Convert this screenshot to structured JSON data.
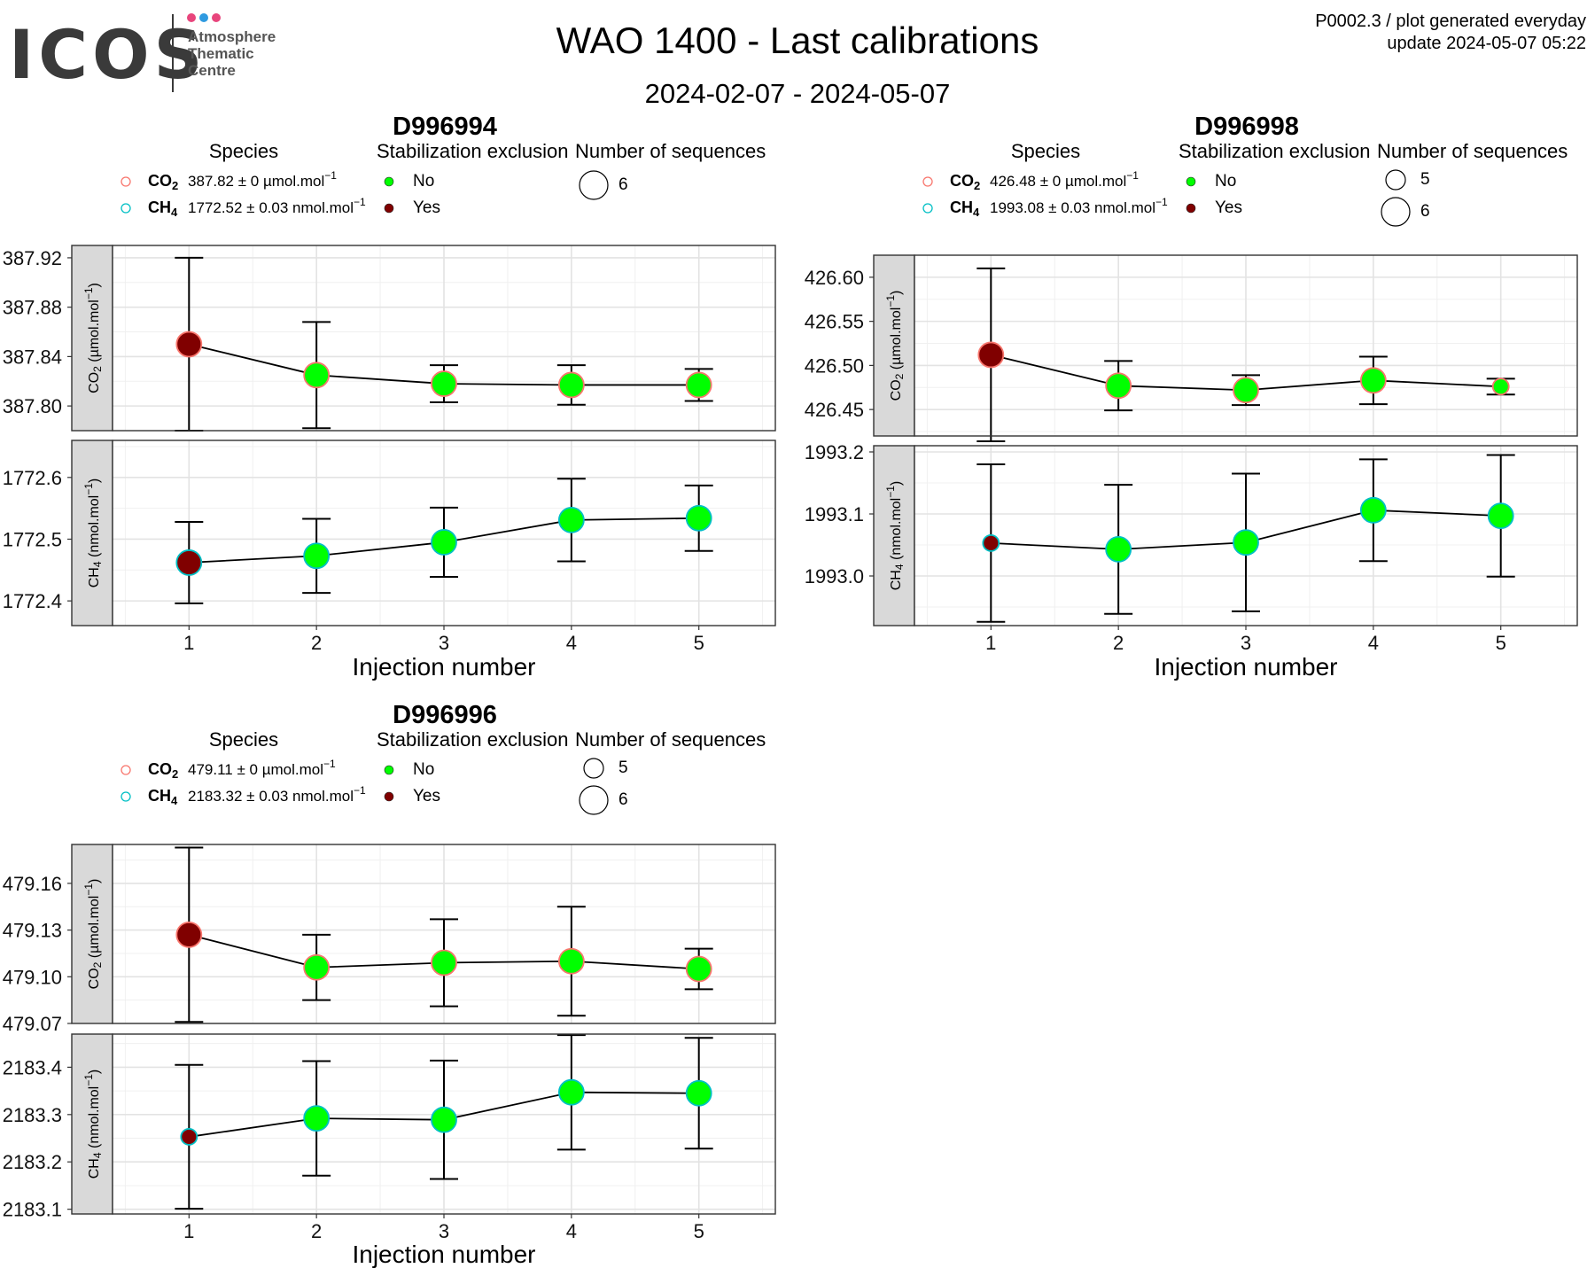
{
  "header": {
    "title": "WAO 1400 - Last calibrations",
    "subtitle": "2024-02-07 - 2024-05-07",
    "info_line1": "P0002.3 / plot generated everyday",
    "info_line2": "update  2024-05-07 05:22",
    "logo_text": "ICOS",
    "logo_lines": [
      "Atmosphere",
      "Thematic",
      "Centre"
    ],
    "logo_dot_colors": [
      "#e8457c",
      "#2f9ae0",
      "#e8457c"
    ]
  },
  "legend_titles": {
    "species": "Species",
    "stabilization": "Stabilization exclusion",
    "sequences": "Number of sequences",
    "no": "No",
    "yes": "Yes"
  },
  "colors": {
    "no": "#00ff00",
    "yes": "#800000",
    "co2": "#f8766d",
    "ch4": "#00bfc4",
    "strip": "#d9d9d9"
  },
  "chart_data": [
    {
      "type": "scatter",
      "cylinder": "D996994",
      "xlabel": "Injection number",
      "x": [
        1,
        2,
        3,
        4,
        5
      ],
      "sequence_sizes": [
        "6"
      ],
      "panels": [
        {
          "species": "CO2",
          "strip_label": "CO2 (µmol.mol-1)",
          "legend_value": "387.82 ± 0 µmol.mol-1",
          "ylim": [
            387.78,
            387.93
          ],
          "yticks": [
            387.8,
            387.84,
            387.88,
            387.92
          ],
          "ytick_labels": [
            "387.80",
            "387.84",
            "387.88",
            "387.92"
          ],
          "points": [
            {
              "x": 1,
              "y": 387.85,
              "err": 0.07,
              "excluded": true,
              "n": 6
            },
            {
              "x": 2,
              "y": 387.825,
              "err": 0.043,
              "excluded": false,
              "n": 6
            },
            {
              "x": 3,
              "y": 387.818,
              "err": 0.015,
              "excluded": false,
              "n": 6
            },
            {
              "x": 4,
              "y": 387.817,
              "err": 0.016,
              "excluded": false,
              "n": 6
            },
            {
              "x": 5,
              "y": 387.817,
              "err": 0.013,
              "excluded": false,
              "n": 6
            }
          ]
        },
        {
          "species": "CH4",
          "strip_label": "CH4 (nmol.mol-1)",
          "legend_value": "1772.52 ± 0.03 nmol.mol-1",
          "ylim": [
            1772.36,
            1772.66
          ],
          "yticks": [
            1772.4,
            1772.5,
            1772.6
          ],
          "ytick_labels": [
            "1772.4",
            "1772.5",
            "1772.6"
          ],
          "points": [
            {
              "x": 1,
              "y": 1772.462,
              "err": 0.066,
              "excluded": true,
              "n": 6
            },
            {
              "x": 2,
              "y": 1772.473,
              "err": 0.06,
              "excluded": false,
              "n": 6
            },
            {
              "x": 3,
              "y": 1772.495,
              "err": 0.056,
              "excluded": false,
              "n": 6
            },
            {
              "x": 4,
              "y": 1772.531,
              "err": 0.067,
              "excluded": false,
              "n": 6
            },
            {
              "x": 5,
              "y": 1772.534,
              "err": 0.053,
              "excluded": false,
              "n": 6
            }
          ]
        }
      ]
    },
    {
      "type": "scatter",
      "cylinder": "D996998",
      "xlabel": "Injection number",
      "x": [
        1,
        2,
        3,
        4,
        5
      ],
      "sequence_sizes": [
        "5",
        "6"
      ],
      "panels": [
        {
          "species": "CO2",
          "strip_label": "CO2 (µmol.mol-1)",
          "legend_value": "426.48 ± 0 µmol.mol-1",
          "ylim": [
            426.42,
            426.625
          ],
          "yticks": [
            426.45,
            426.5,
            426.55,
            426.6
          ],
          "ytick_labels": [
            "426.45",
            "426.50",
            "426.55",
            "426.60"
          ],
          "points": [
            {
              "x": 1,
              "y": 426.512,
              "err": 0.098,
              "excluded": true,
              "n": 6
            },
            {
              "x": 2,
              "y": 426.477,
              "err": 0.028,
              "excluded": false,
              "n": 6
            },
            {
              "x": 3,
              "y": 426.472,
              "err": 0.017,
              "excluded": false,
              "n": 6
            },
            {
              "x": 4,
              "y": 426.483,
              "err": 0.027,
              "excluded": false,
              "n": 6
            },
            {
              "x": 5,
              "y": 426.476,
              "err": 0.009,
              "excluded": false,
              "n": 5
            }
          ]
        },
        {
          "species": "CH4",
          "strip_label": "CH4 (nmol.mol-1)",
          "legend_value": "1993.08 ± 0.03 nmol.mol-1",
          "ylim": [
            1992.92,
            1993.21
          ],
          "yticks": [
            1993.0,
            1993.1,
            1993.2
          ],
          "ytick_labels": [
            "1993.0",
            "1993.1",
            "1993.2"
          ],
          "points": [
            {
              "x": 1,
              "y": 1993.053,
              "err": 0.127,
              "excluded": true,
              "n": 5
            },
            {
              "x": 2,
              "y": 1993.043,
              "err": 0.104,
              "excluded": false,
              "n": 6
            },
            {
              "x": 3,
              "y": 1993.054,
              "err": 0.111,
              "excluded": false,
              "n": 6
            },
            {
              "x": 4,
              "y": 1993.106,
              "err": 0.082,
              "excluded": false,
              "n": 6
            },
            {
              "x": 5,
              "y": 1993.097,
              "err": 0.098,
              "excluded": false,
              "n": 6
            }
          ]
        }
      ]
    },
    {
      "type": "scatter",
      "cylinder": "D996996",
      "xlabel": "Injection number",
      "x": [
        1,
        2,
        3,
        4,
        5
      ],
      "sequence_sizes": [
        "5",
        "6"
      ],
      "panels": [
        {
          "species": "CO2",
          "strip_label": "CO2 (µmol.mol-1)",
          "legend_value": "479.11 ± 0 µmol.mol-1",
          "ylim": [
            479.07,
            479.185
          ],
          "yticks": [
            479.07,
            479.1,
            479.13,
            479.16
          ],
          "ytick_labels": [
            "479.07",
            "479.10",
            "479.13",
            "479.16"
          ],
          "points": [
            {
              "x": 1,
              "y": 479.127,
              "err": 0.056,
              "excluded": true,
              "n": 6
            },
            {
              "x": 2,
              "y": 479.106,
              "err": 0.021,
              "excluded": false,
              "n": 6
            },
            {
              "x": 3,
              "y": 479.109,
              "err": 0.028,
              "excluded": false,
              "n": 6
            },
            {
              "x": 4,
              "y": 479.11,
              "err": 0.035,
              "excluded": false,
              "n": 6
            },
            {
              "x": 5,
              "y": 479.105,
              "err": 0.013,
              "excluded": false,
              "n": 6
            }
          ]
        },
        {
          "species": "CH4",
          "strip_label": "CH4 (nmol.mol-1)",
          "legend_value": "2183.32 ± 0.03 nmol.mol-1",
          "ylim": [
            2183.09,
            2183.47
          ],
          "yticks": [
            2183.1,
            2183.2,
            2183.3,
            2183.4
          ],
          "ytick_labels": [
            "2183.1",
            "2183.2",
            "2183.3",
            "2183.4"
          ],
          "points": [
            {
              "x": 1,
              "y": 2183.253,
              "err": 0.152,
              "excluded": true,
              "n": 5
            },
            {
              "x": 2,
              "y": 2183.292,
              "err": 0.121,
              "excluded": false,
              "n": 6
            },
            {
              "x": 3,
              "y": 2183.289,
              "err": 0.125,
              "excluded": false,
              "n": 6
            },
            {
              "x": 4,
              "y": 2183.347,
              "err": 0.121,
              "excluded": false,
              "n": 6
            },
            {
              "x": 5,
              "y": 2183.345,
              "err": 0.117,
              "excluded": false,
              "n": 6
            }
          ]
        }
      ]
    }
  ]
}
